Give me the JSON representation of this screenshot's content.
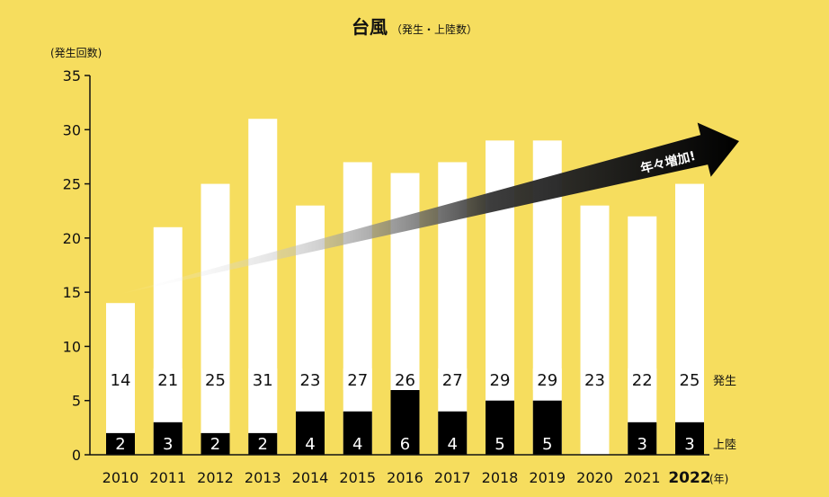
{
  "title": "台風",
  "subtitle": "（発生・上陸数）",
  "y_unit_label": "(発生回数)",
  "chart_data": {
    "type": "bar",
    "categories": [
      "2010",
      "2011",
      "2012",
      "2013",
      "2014",
      "2015",
      "2016",
      "2017",
      "2018",
      "2019",
      "2020",
      "2021",
      "2022"
    ],
    "series": [
      {
        "name": "発生",
        "values": [
          14,
          21,
          25,
          31,
          23,
          27,
          26,
          27,
          29,
          29,
          23,
          22,
          25
        ],
        "color": "#FFFFFF"
      },
      {
        "name": "上陸",
        "values": [
          2,
          3,
          2,
          2,
          4,
          4,
          6,
          4,
          5,
          5,
          0,
          3,
          3
        ],
        "color": "#000000"
      }
    ],
    "yticks": [
      0,
      5,
      10,
      15,
      20,
      25,
      30,
      35
    ],
    "ylim": [
      0,
      35
    ],
    "x_unit_label": "(年)",
    "highlight_category": "2022",
    "series_labels": {
      "occurrence": "発生",
      "landfall": "上陸"
    },
    "annotation": "年々増加!",
    "background": "#F6DD5E"
  }
}
